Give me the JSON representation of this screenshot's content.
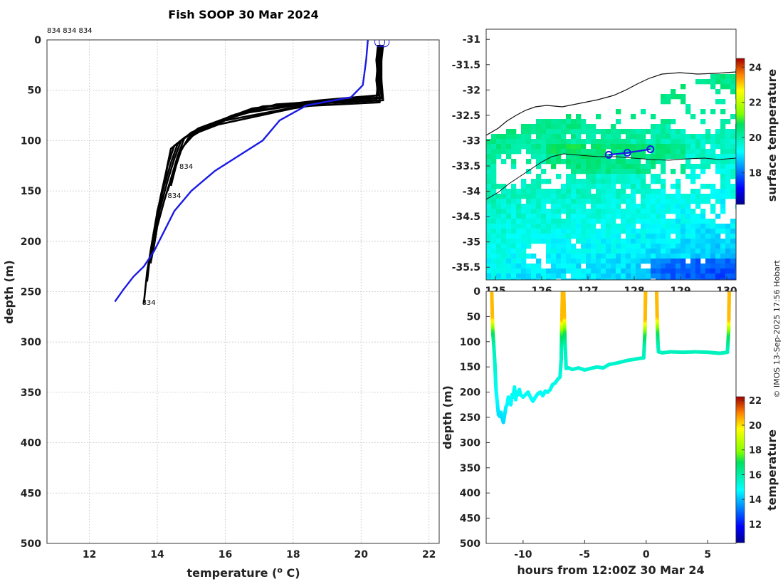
{
  "copyright": "© IMOS 13-Sep-2025 17:56 Hobart",
  "chart_data": [
    {
      "id": "profile",
      "type": "line",
      "title": "Fish SOOP 30 Mar 2024",
      "xlabel": "temperature (",
      "xlabel_sup": "o",
      "xlabel_unit": " C)",
      "ylabel": "depth (m)",
      "xlim": [
        10.75,
        22.3
      ],
      "ylim": [
        500,
        0
      ],
      "xticks": [
        12,
        14,
        16,
        18,
        20,
        22
      ],
      "yticks": [
        0,
        50,
        100,
        150,
        200,
        250,
        300,
        350,
        400,
        450,
        500
      ],
      "grid": true,
      "header_text": "834 834 834",
      "profile_labels": [
        {
          "text": "834",
          "x": 14.65,
          "y": 128
        },
        {
          "text": "834",
          "x": 14.3,
          "y": 157
        },
        {
          "text": "834",
          "x": 13.55,
          "y": 263
        }
      ],
      "climatology": {
        "name": "climatology",
        "color": "#1a1ae6",
        "t": [
          20.2,
          20.15,
          20.05,
          19.7,
          18.4,
          17.6,
          17.1,
          16.4,
          15.7,
          15.0,
          14.5,
          14.2,
          13.9,
          13.6,
          13.3,
          13.0,
          12.75
        ],
        "z": [
          0,
          20,
          45,
          57,
          65,
          80,
          100,
          115,
          130,
          150,
          170,
          190,
          210,
          225,
          235,
          248,
          260
        ]
      },
      "profiles": [
        {
          "name": "profile 1",
          "t": [
            20.55,
            20.5,
            20.55,
            20.5,
            18.8,
            16.8,
            15.2,
            14.7,
            14.5,
            14.3,
            14.1,
            13.9,
            13.8,
            13.75,
            13.7
          ],
          "z": [
            5,
            20,
            40,
            55,
            60,
            68,
            88,
            100,
            118,
            140,
            165,
            190,
            210,
            225,
            240
          ]
        },
        {
          "name": "profile 2",
          "t": [
            20.6,
            20.55,
            20.6,
            20.6,
            18.5,
            16.3,
            15.0,
            14.6,
            14.4,
            14.2,
            14.0,
            13.9,
            13.8
          ],
          "z": [
            5,
            20,
            40,
            57,
            63,
            74,
            92,
            103,
            122,
            145,
            170,
            195,
            215
          ]
        },
        {
          "name": "profile 3",
          "t": [
            20.5,
            20.45,
            20.5,
            20.45,
            19.0,
            17.1,
            15.5,
            14.8,
            14.6,
            14.4,
            14.2,
            14.0,
            13.9,
            13.8
          ],
          "z": [
            5,
            20,
            40,
            60,
            62,
            66,
            85,
            97,
            115,
            138,
            160,
            185,
            205,
            222
          ]
        },
        {
          "name": "profile 4",
          "t": [
            20.55,
            20.5,
            20.5,
            20.55,
            18.2,
            16.0,
            14.9,
            14.5,
            14.3,
            14.15,
            14.05,
            13.9
          ],
          "z": [
            5,
            20,
            40,
            62,
            66,
            80,
            95,
            105,
            125,
            150,
            172,
            195
          ]
        },
        {
          "name": "profile 5",
          "t": [
            20.6,
            20.6,
            20.55,
            20.6,
            19.3,
            17.5,
            15.7,
            14.9,
            14.7,
            14.5,
            14.3
          ],
          "z": [
            5,
            20,
            40,
            58,
            60,
            64,
            82,
            98,
            110,
            130,
            150
          ]
        },
        {
          "name": "profile 6",
          "t": [
            20.5,
            20.5,
            20.45,
            20.5,
            18.0,
            15.8,
            14.8,
            14.4,
            14.25,
            14.1,
            13.95,
            13.85,
            13.7,
            13.6
          ],
          "z": [
            5,
            20,
            40,
            55,
            68,
            84,
            97,
            108,
            132,
            155,
            180,
            200,
            230,
            262
          ]
        },
        {
          "name": "profile 7",
          "t": [
            20.65,
            20.6,
            20.6,
            20.65,
            19.5,
            18.0,
            16.2,
            15.1,
            14.7,
            14.55,
            14.4
          ],
          "z": [
            5,
            20,
            40,
            60,
            62,
            64,
            75,
            93,
            108,
            125,
            145
          ]
        }
      ],
      "surface_markers": [
        {
          "t": 20.55,
          "z": 2
        },
        {
          "t": 20.68,
          "z": 2
        }
      ]
    },
    {
      "id": "map",
      "type": "heatmap",
      "xlim": [
        124.8,
        130.2
      ],
      "ylim": [
        -35.75,
        -30.8
      ],
      "xticks": [
        125,
        126,
        127,
        128,
        129,
        130
      ],
      "xtick_labels": [
        "125",
        "126",
        "127",
        "128",
        "129",
        "130"
      ],
      "yticks": [
        -31,
        -31.5,
        -32,
        -32.5,
        -33,
        -33.5,
        -34,
        -34.5,
        -35,
        -35.5
      ],
      "ytick_labels": [
        "-31",
        "-31.5",
        "-32",
        "-32.5",
        "-33",
        "-33.5",
        "-34",
        "-34.5",
        "-35",
        "-35.5"
      ],
      "colorbar_label": "surface temperature",
      "colorbar_range": [
        16.2,
        24.5
      ],
      "colorbar_ticks": [
        18,
        20,
        22,
        24
      ],
      "track": {
        "color": "#1a1ae6",
        "lon": [
          127.45,
          127.85,
          128.35
        ],
        "lat": [
          -33.28,
          -33.24,
          -33.17
        ]
      }
    },
    {
      "id": "timeseries",
      "type": "scatter",
      "xlabel": "hours from 12:00Z 30 Mar 24",
      "ylabel": "depth (m)",
      "xlim": [
        -13.0,
        7.3
      ],
      "ylim": [
        500,
        0
      ],
      "xticks": [
        -10,
        -5,
        0,
        5
      ],
      "yticks": [
        0,
        50,
        100,
        150,
        200,
        250,
        300,
        350,
        400,
        450,
        500
      ],
      "colorbar_label": "temperature",
      "colorbar_range": [
        10.5,
        22.3
      ],
      "colorbar_ticks": [
        12,
        14,
        16,
        18,
        20,
        22
      ],
      "segments": [
        {
          "name": "cast 1",
          "h": [
            -12.55,
            -12.5,
            -12.45,
            -12.4,
            -12.3,
            -12.2,
            -12.0,
            -11.9,
            -11.8,
            -11.7,
            -11.6,
            -11.5,
            -11.4,
            -11.3,
            -11.2,
            -11.1,
            -11.0,
            -10.9,
            -10.8,
            -10.7,
            -10.6,
            -10.5,
            -10.4,
            -10.3,
            -10.2,
            -10.0,
            -9.8,
            -9.6,
            -9.4,
            -9.2,
            -9.0,
            -8.8,
            -8.6,
            -8.4,
            -8.2,
            -8.0,
            -7.8,
            -7.6,
            -7.4,
            -7.2,
            -7.0,
            -6.9,
            -6.85,
            -6.8
          ],
          "z": [
            0,
            50,
            85,
            100,
            140,
            195,
            245,
            248,
            240,
            252,
            260,
            245,
            230,
            225,
            210,
            215,
            225,
            205,
            210,
            190,
            215,
            200,
            205,
            195,
            205,
            210,
            205,
            200,
            210,
            218,
            210,
            203,
            200,
            207,
            198,
            200,
            195,
            185,
            182,
            175,
            170,
            135,
            60,
            0
          ]
        },
        {
          "name": "cast 2",
          "h": [
            -6.7,
            -6.65,
            -6.6,
            -6.55,
            -6.5,
            -6.3,
            -6.0,
            -5.5,
            -5.0,
            -4.5,
            -4.0,
            -3.5,
            -3.0,
            -2.5,
            -2.0,
            -1.5,
            -1.0,
            -0.5,
            -0.2,
            -0.1,
            -0.05
          ],
          "z": [
            0,
            50,
            100,
            125,
            153,
            152,
            155,
            152,
            156,
            153,
            150,
            152,
            145,
            143,
            140,
            137,
            135,
            133,
            132,
            80,
            0
          ]
        },
        {
          "name": "cast 3",
          "h": [
            0.85,
            0.9,
            0.95,
            1.0,
            1.3,
            2.0,
            3.0,
            4.0,
            5.0,
            6.0,
            6.6,
            6.7,
            6.75
          ],
          "z": [
            0,
            60,
            100,
            120,
            122,
            120,
            121,
            120,
            121,
            123,
            121,
            80,
            0
          ]
        }
      ]
    }
  ]
}
